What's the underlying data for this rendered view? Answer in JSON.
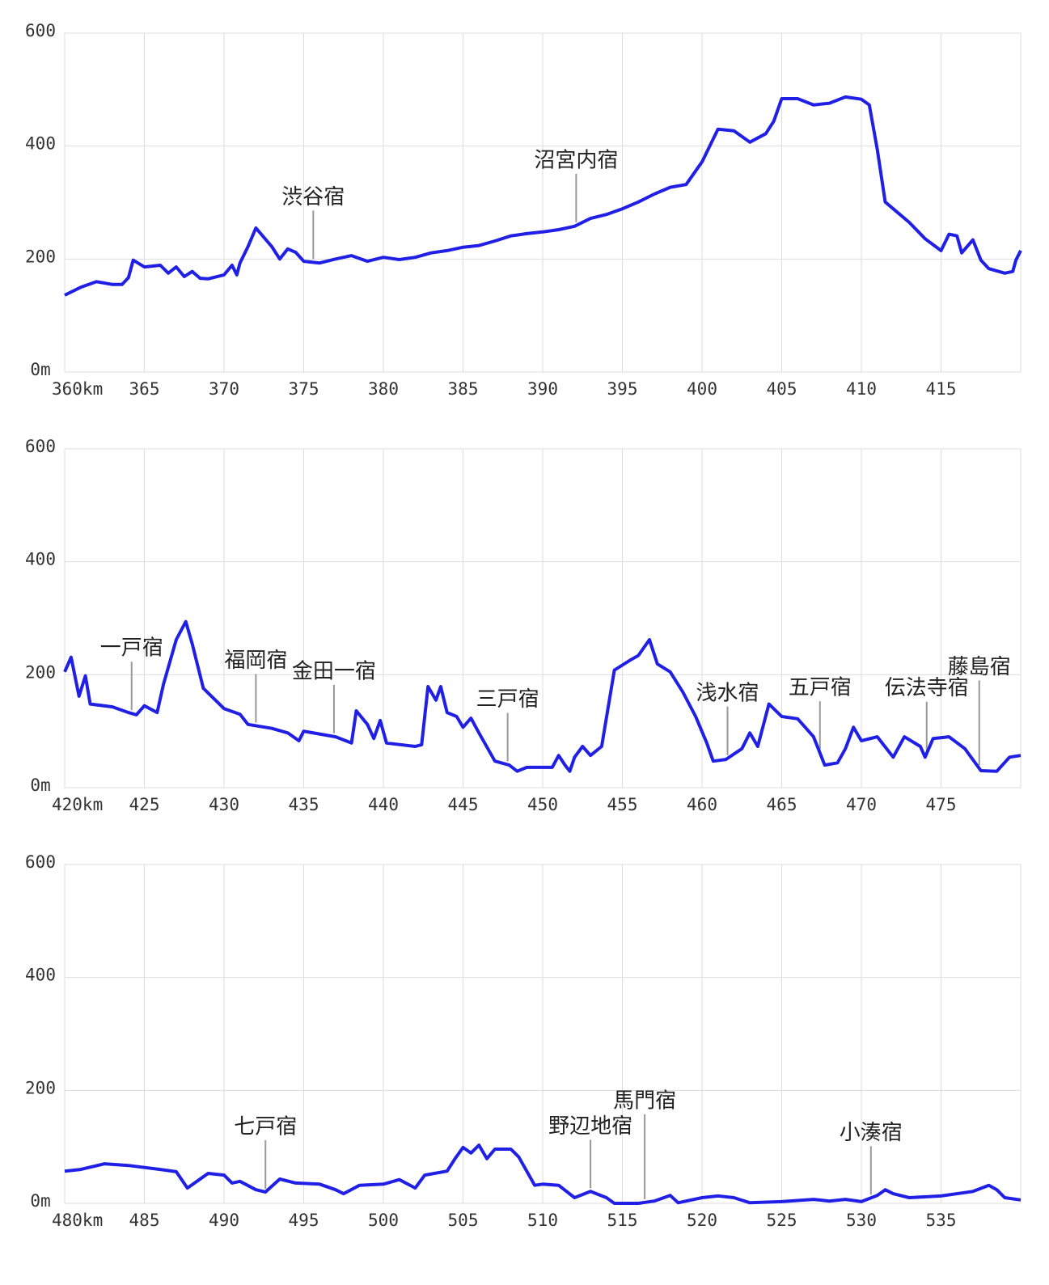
{
  "chart_data": [
    {
      "type": "line",
      "color": "#1f1fe6",
      "grid": true,
      "xlim": [
        360,
        420
      ],
      "ylim": [
        0,
        600
      ],
      "xticks": [
        {
          "value": 360,
          "label": "360km"
        },
        365,
        370,
        375,
        380,
        385,
        390,
        395,
        400,
        405,
        410,
        415
      ],
      "yticks": [
        {
          "value": 0,
          "label": "0m"
        },
        200,
        400,
        600
      ],
      "x": [
        360,
        361,
        362,
        363,
        363.6,
        364,
        364.3,
        365,
        366,
        366.5,
        367,
        367.5,
        368,
        368.5,
        369,
        370,
        370.5,
        370.8,
        371,
        371.5,
        372,
        373,
        373.5,
        374,
        374.5,
        375,
        376,
        377,
        378,
        379,
        380,
        381,
        382,
        383,
        384,
        385,
        386,
        387,
        388,
        389,
        390,
        391,
        392,
        393,
        394,
        395,
        396,
        397,
        398,
        399,
        400,
        401,
        402,
        403,
        404,
        404.5,
        405,
        406,
        407,
        408,
        409,
        410,
        410.5,
        411,
        411.5,
        412,
        413,
        414,
        415,
        415.5,
        416,
        416.3,
        417,
        417.5,
        418,
        419,
        419.5,
        419.7,
        420
      ],
      "values": [
        136,
        150,
        160,
        155,
        155,
        167,
        198,
        186,
        189,
        175,
        186,
        169,
        178,
        166,
        165,
        172,
        189,
        172,
        193,
        222,
        255,
        222,
        200,
        218,
        212,
        196,
        193,
        200,
        206,
        196,
        203,
        199,
        203,
        211,
        215,
        221,
        224,
        232,
        241,
        245,
        248,
        252,
        258,
        272,
        279,
        289,
        301,
        315,
        327,
        332,
        372,
        430,
        427,
        407,
        422,
        444,
        484,
        484,
        473,
        476,
        487,
        483,
        473,
        394,
        301,
        289,
        265,
        236,
        215,
        244,
        241,
        211,
        234,
        198,
        183,
        175,
        178,
        198,
        215
      ],
      "annotations": [
        {
          "text": "渋谷宿",
          "x": 375.6
        },
        {
          "text": "沼宮内宿",
          "x": 392.1
        }
      ]
    },
    {
      "type": "line",
      "color": "#1f1fe6",
      "grid": true,
      "xlim": [
        420,
        480
      ],
      "ylim": [
        0,
        600
      ],
      "xticks": [
        {
          "value": 420,
          "label": "420km"
        },
        425,
        430,
        435,
        440,
        445,
        450,
        455,
        460,
        465,
        470,
        475
      ],
      "yticks": [
        {
          "value": 0,
          "label": "0m"
        },
        200,
        400,
        600
      ],
      "x": [
        420,
        420.4,
        420.9,
        421.3,
        421.6,
        423,
        424,
        424.5,
        425,
        425.8,
        426.2,
        427,
        427.6,
        428,
        428.7,
        430,
        431,
        431.5,
        433,
        434,
        434.7,
        435,
        437,
        438,
        438.3,
        439,
        439.4,
        439.8,
        440.2,
        442,
        442.4,
        442.8,
        443.3,
        443.6,
        444,
        444.6,
        445,
        445.5,
        446,
        447,
        447.9,
        448.4,
        449,
        450.6,
        451,
        451.4,
        451.7,
        452,
        452.5,
        453,
        453.7,
        454.5,
        455.5,
        456,
        456.7,
        457.2,
        458,
        458.8,
        459.6,
        460.3,
        460.7,
        461.5,
        462.5,
        463,
        463.5,
        464.2,
        465,
        466,
        467,
        467.7,
        468.5,
        469,
        469.5,
        470,
        471,
        472,
        472.7,
        473.7,
        474,
        474.5,
        475.5,
        476.5,
        477.5,
        478.5,
        479.3,
        480
      ],
      "values": [
        205,
        231,
        162,
        198,
        148,
        143,
        133,
        129,
        145,
        133,
        183,
        262,
        294,
        255,
        176,
        140,
        130,
        112,
        105,
        97,
        83,
        100,
        90,
        79,
        136,
        112,
        87,
        119,
        79,
        73,
        76,
        179,
        155,
        179,
        133,
        126,
        107,
        123,
        97,
        47,
        40,
        29,
        36,
        36,
        57,
        40,
        29,
        54,
        73,
        57,
        73,
        208,
        226,
        234,
        262,
        219,
        205,
        169,
        126,
        79,
        47,
        50,
        69,
        97,
        73,
        148,
        126,
        122,
        90,
        40,
        44,
        69,
        107,
        83,
        90,
        54,
        90,
        73,
        54,
        87,
        90,
        69,
        30,
        29,
        54,
        57
      ],
      "annotations": [
        {
          "text": "一戸宿",
          "x": 424.2
        },
        {
          "text": "福岡宿",
          "x": 432.0
        },
        {
          "text": "金田一宿",
          "x": 436.9
        },
        {
          "text": "三戸宿",
          "x": 447.8
        },
        {
          "text": "浅水宿",
          "x": 461.6
        },
        {
          "text": "五戸宿",
          "x": 467.4
        },
        {
          "text": "伝法寺宿",
          "x": 474.1
        },
        {
          "text": "藤島宿",
          "x": 477.4
        }
      ]
    },
    {
      "type": "line",
      "color": "#1f1fe6",
      "grid": true,
      "xlim": [
        480,
        540
      ],
      "ylim": [
        0,
        600
      ],
      "xticks": [
        {
          "value": 480,
          "label": "480km"
        },
        485,
        490,
        495,
        500,
        505,
        510,
        515,
        520,
        525,
        530,
        535
      ],
      "yticks": [
        {
          "value": 0,
          "label": "0m"
        },
        200,
        400,
        600
      ],
      "x": [
        480,
        481,
        482.5,
        484,
        486,
        487,
        487.7,
        489,
        490,
        490.5,
        491,
        492,
        492.6,
        493.5,
        494.5,
        496,
        497,
        497.5,
        498.5,
        500,
        501,
        502,
        502.6,
        504,
        504.5,
        505,
        505.5,
        506,
        506.5,
        507,
        508,
        508.5,
        509.5,
        510,
        511,
        512,
        513,
        514,
        514.5,
        516,
        517,
        518,
        518.5,
        520,
        521,
        522,
        523,
        525,
        527,
        528,
        529,
        530,
        531,
        531.5,
        532,
        533,
        535,
        537,
        538,
        538.5,
        539,
        540
      ],
      "values": [
        57,
        60,
        70,
        67,
        60,
        56,
        27,
        53,
        50,
        36,
        39,
        24,
        20,
        43,
        36,
        34,
        24,
        17,
        32,
        34,
        42,
        27,
        50,
        57,
        79,
        99,
        89,
        103,
        79,
        96,
        96,
        82,
        32,
        34,
        32,
        10,
        21,
        10,
        0,
        0,
        4,
        14,
        1,
        10,
        13,
        10,
        1,
        3,
        7,
        4,
        7,
        3,
        14,
        24,
        17,
        10,
        13,
        21,
        32,
        24,
        10,
        6
      ],
      "annotations": [
        {
          "text": "七戸宿",
          "x": 492.6
        },
        {
          "text": "野辺地宿",
          "x": 513.0
        },
        {
          "text": "馬門宿",
          "x": 516.4
        },
        {
          "text": "小湊宿",
          "x": 530.6
        }
      ]
    }
  ]
}
